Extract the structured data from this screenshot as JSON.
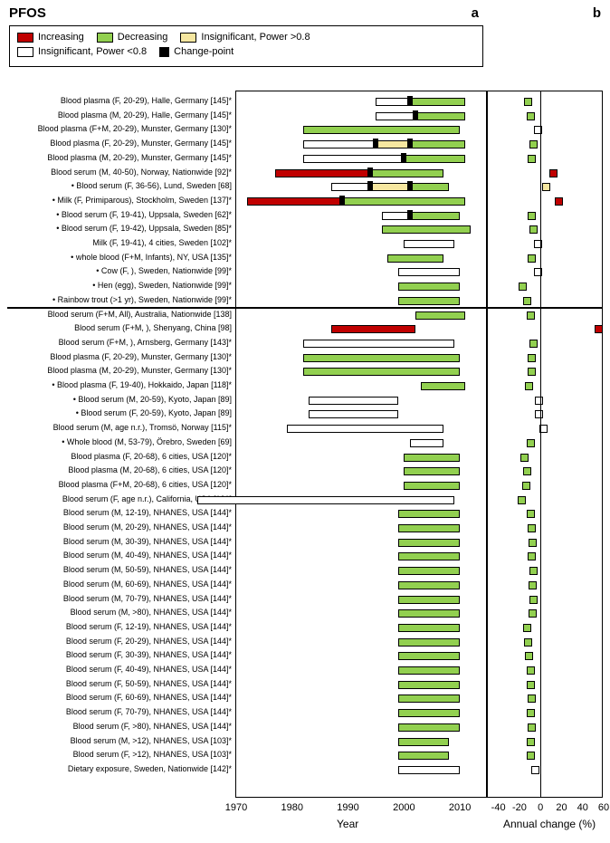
{
  "title": "PFOS",
  "panel_a": "a",
  "panel_b": "b",
  "colors": {
    "increasing": "#c00000",
    "decreasing": "#92d050",
    "insig_high": "#f6e7a0",
    "insig_low": "#ffffff",
    "changepoint": "#000000"
  },
  "legend": [
    {
      "label": "Increasing",
      "color": "#c00000"
    },
    {
      "label": "Decreasing",
      "color": "#92d050"
    },
    {
      "label": "Insignificant, Power >0.8",
      "color": "#f6e7a0"
    },
    {
      "label": "Insignificant, Power <0.8",
      "color": "#ffffff"
    },
    {
      "label": "Change-point",
      "color": "#000000"
    }
  ],
  "axis_a": {
    "label": "Year",
    "min": 1970,
    "max": 2015,
    "ticks": [
      1970,
      1980,
      1990,
      2000,
      2010
    ]
  },
  "axis_b": {
    "label": "Annual change (%)",
    "min": -50,
    "max": 60,
    "ticks": [
      -40,
      -20,
      0,
      20,
      40,
      60
    ]
  },
  "layout": {
    "row_height": 15.7,
    "top_pad": 6,
    "divider_after_row": 14
  },
  "rows": [
    {
      "label": "Blood plasma (F, 20-29), Halle, Germany [145]*",
      "segs": [
        {
          "from": 1995,
          "to": 2001,
          "c": "insig_low"
        },
        {
          "from": 2001,
          "to": 2011,
          "c": "decreasing"
        }
      ],
      "cp": [
        2001
      ],
      "pct": {
        "v": -12,
        "c": "decreasing"
      }
    },
    {
      "label": "Blood plasma (M, 20-29), Halle, Germany [145]*",
      "segs": [
        {
          "from": 1995,
          "to": 2002,
          "c": "insig_low"
        },
        {
          "from": 2002,
          "to": 2011,
          "c": "decreasing"
        }
      ],
      "cp": [
        2002
      ],
      "pct": {
        "v": -10,
        "c": "decreasing"
      }
    },
    {
      "label": "Blood plasma (F+M, 20-29), Munster, Germany [130]*",
      "segs": [
        {
          "from": 1982,
          "to": 2010,
          "c": "decreasing"
        }
      ],
      "cp": [],
      "pct": {
        "v": -3,
        "c": "insig_low"
      }
    },
    {
      "label": "Blood plasma (F, 20-29), Munster, Germany [145]*",
      "segs": [
        {
          "from": 1982,
          "to": 1995,
          "c": "insig_low"
        },
        {
          "from": 1995,
          "to": 2001,
          "c": "insig_high"
        },
        {
          "from": 2001,
          "to": 2011,
          "c": "decreasing"
        }
      ],
      "cp": [
        1995,
        2001
      ],
      "pct": {
        "v": -7,
        "c": "decreasing"
      }
    },
    {
      "label": "Blood plasma (M, 20-29), Munster, Germany [145]*",
      "segs": [
        {
          "from": 1982,
          "to": 2000,
          "c": "insig_low"
        },
        {
          "from": 2000,
          "to": 2011,
          "c": "decreasing"
        }
      ],
      "cp": [
        2000
      ],
      "pct": {
        "v": -9,
        "c": "decreasing"
      }
    },
    {
      "label": "Blood serum (M, 40-50), Norway, Nationwide [92]*",
      "segs": [
        {
          "from": 1977,
          "to": 1994,
          "c": "increasing"
        },
        {
          "from": 1994,
          "to": 2007,
          "c": "decreasing"
        }
      ],
      "cp": [
        1994
      ],
      "pct": {
        "v": 12,
        "c": "increasing"
      }
    },
    {
      "label": "• Blood serum (F, 36-56), Lund, Sweden [68]",
      "segs": [
        {
          "from": 1987,
          "to": 1994,
          "c": "insig_low"
        },
        {
          "from": 1994,
          "to": 2001,
          "c": "insig_high"
        },
        {
          "from": 2001,
          "to": 2008,
          "c": "decreasing"
        }
      ],
      "cp": [
        1994,
        2001
      ],
      "pct": {
        "v": 5,
        "c": "insig_high"
      }
    },
    {
      "label": "• Milk (F, Primiparous), Stockholm, Sweden [137]*",
      "segs": [
        {
          "from": 1972,
          "to": 1989,
          "c": "increasing"
        },
        {
          "from": 1989,
          "to": 2011,
          "c": "decreasing"
        }
      ],
      "cp": [
        1989
      ],
      "pct": {
        "v": 17,
        "c": "increasing"
      }
    },
    {
      "label": "• Blood serum (F, 19-41), Uppsala, Sweden [62]*",
      "segs": [
        {
          "from": 1996,
          "to": 2001,
          "c": "insig_low"
        },
        {
          "from": 2001,
          "to": 2010,
          "c": "decreasing"
        }
      ],
      "cp": [
        2001
      ],
      "pct": {
        "v": -9,
        "c": "decreasing"
      }
    },
    {
      "label": "• Blood serum (F, 19-42), Uppsala, Sweden [85]*",
      "segs": [
        {
          "from": 1996,
          "to": 2012,
          "c": "decreasing"
        }
      ],
      "cp": [],
      "pct": {
        "v": -7,
        "c": "decreasing"
      }
    },
    {
      "label": "Milk (F, 19-41), 4 cities, Sweden [102]*",
      "segs": [
        {
          "from": 2000,
          "to": 2009,
          "c": "insig_low"
        }
      ],
      "cp": [],
      "pct": {
        "v": -3,
        "c": "insig_low"
      }
    },
    {
      "label": "• whole blood (F+M, Infants), NY, USA [135]*",
      "segs": [
        {
          "from": 1997,
          "to": 2007,
          "c": "decreasing"
        }
      ],
      "cp": [],
      "pct": {
        "v": -9,
        "c": "decreasing"
      }
    },
    {
      "label": "• Cow (F, ), Sweden, Nationwide [99]*",
      "segs": [
        {
          "from": 1999,
          "to": 2010,
          "c": "insig_low"
        }
      ],
      "cp": [],
      "pct": {
        "v": -3,
        "c": "insig_low"
      }
    },
    {
      "label": "• Hen (egg), Sweden, Nationwide [99]*",
      "segs": [
        {
          "from": 1999,
          "to": 2010,
          "c": "decreasing"
        }
      ],
      "cp": [],
      "pct": {
        "v": -17,
        "c": "decreasing"
      }
    },
    {
      "label": "• Rainbow trout (>1 yr), Sweden, Nationwide [99]*",
      "segs": [
        {
          "from": 1999,
          "to": 2010,
          "c": "decreasing"
        }
      ],
      "cp": [],
      "pct": {
        "v": -13,
        "c": "decreasing"
      }
    },
    {
      "label": "Blood serum (F+M, All), Australia, Nationwide [138]",
      "segs": [
        {
          "from": 2002,
          "to": 2011,
          "c": "decreasing"
        }
      ],
      "cp": [],
      "pct": {
        "v": -10,
        "c": "decreasing"
      }
    },
    {
      "label": "Blood serum (F+M, ), Shenyang, China [98]",
      "segs": [
        {
          "from": 1987,
          "to": 2002,
          "c": "increasing"
        }
      ],
      "cp": [],
      "pct": {
        "v": 55,
        "c": "increasing"
      }
    },
    {
      "label": "Blood serum (F+M, ), Arnsberg, Germany [143]*",
      "segs": [
        {
          "from": 1982,
          "to": 2009,
          "c": "insig_low"
        }
      ],
      "cp": [],
      "pct": {
        "v": -7,
        "c": "decreasing"
      }
    },
    {
      "label": "Blood plasma (F, 20-29), Munster, Germany [130]*",
      "segs": [
        {
          "from": 1982,
          "to": 2010,
          "c": "decreasing"
        }
      ],
      "cp": [],
      "pct": {
        "v": -9,
        "c": "decreasing"
      }
    },
    {
      "label": "Blood plasma (M, 20-29), Munster, Germany [130]*",
      "segs": [
        {
          "from": 1982,
          "to": 2010,
          "c": "decreasing"
        }
      ],
      "cp": [],
      "pct": {
        "v": -9,
        "c": "decreasing"
      }
    },
    {
      "label": "• Blood plasma (F, 19-40), Hokkaido, Japan [118]*",
      "segs": [
        {
          "from": 2003,
          "to": 2011,
          "c": "decreasing"
        }
      ],
      "cp": [],
      "pct": {
        "v": -11,
        "c": "decreasing"
      }
    },
    {
      "label": "• Blood serum (M, 20-59), Kyoto, Japan [89]",
      "segs": [
        {
          "from": 1983,
          "to": 1999,
          "c": "insig_low"
        }
      ],
      "cp": [],
      "pct": {
        "v": -2,
        "c": "insig_low"
      }
    },
    {
      "label": "• Blood serum (F, 20-59), Kyoto, Japan [89]",
      "segs": [
        {
          "from": 1983,
          "to": 1999,
          "c": "insig_low"
        }
      ],
      "cp": [],
      "pct": {
        "v": -2,
        "c": "insig_low"
      }
    },
    {
      "label": "Blood serum (M, age n.r.), Tromsö, Norway [115]*",
      "segs": [
        {
          "from": 1979,
          "to": 2007,
          "c": "insig_low"
        }
      ],
      "cp": [],
      "pct": {
        "v": 2,
        "c": "insig_low"
      }
    },
    {
      "label": "• Whole blood (M, 53-79), Örebro, Sweden [69]",
      "segs": [
        {
          "from": 2001,
          "to": 2007,
          "c": "insig_low"
        }
      ],
      "cp": [],
      "pct": {
        "v": -10,
        "c": "decreasing"
      }
    },
    {
      "label": "Blood plasma (F, 20-68), 6 cities, USA [120]*",
      "segs": [
        {
          "from": 2000,
          "to": 2010,
          "c": "decreasing"
        }
      ],
      "cp": [],
      "pct": {
        "v": -16,
        "c": "decreasing"
      }
    },
    {
      "label": "Blood plasma (M, 20-68), 6 cities, USA [120]*",
      "segs": [
        {
          "from": 2000,
          "to": 2010,
          "c": "decreasing"
        }
      ],
      "cp": [],
      "pct": {
        "v": -13,
        "c": "decreasing"
      }
    },
    {
      "label": "Blood plasma (F+M, 20-68), 6 cities, USA [120]*",
      "segs": [
        {
          "from": 2000,
          "to": 2010,
          "c": "decreasing"
        }
      ],
      "cp": [],
      "pct": {
        "v": -14,
        "c": "decreasing"
      }
    },
    {
      "label": "Blood serum (F, age n.r.), California, USA [121]",
      "segs": [
        {
          "from": 1963,
          "to": 2009,
          "c": "insig_low"
        }
      ],
      "cp": [],
      "pct": {
        "v": -18,
        "c": "decreasing"
      }
    },
    {
      "label": "Blood serum (M, 12-19), NHANES, USA [144]*",
      "segs": [
        {
          "from": 1999,
          "to": 2010,
          "c": "decreasing"
        }
      ],
      "cp": [],
      "pct": {
        "v": -10,
        "c": "decreasing"
      }
    },
    {
      "label": "Blood serum (M, 20-29), NHANES, USA [144]*",
      "segs": [
        {
          "from": 1999,
          "to": 2010,
          "c": "decreasing"
        }
      ],
      "cp": [],
      "pct": {
        "v": -9,
        "c": "decreasing"
      }
    },
    {
      "label": "Blood serum (M, 30-39), NHANES, USA [144]*",
      "segs": [
        {
          "from": 1999,
          "to": 2010,
          "c": "decreasing"
        }
      ],
      "cp": [],
      "pct": {
        "v": -8,
        "c": "decreasing"
      }
    },
    {
      "label": "Blood serum (M, 40-49), NHANES, USA [144]*",
      "segs": [
        {
          "from": 1999,
          "to": 2010,
          "c": "decreasing"
        }
      ],
      "cp": [],
      "pct": {
        "v": -9,
        "c": "decreasing"
      }
    },
    {
      "label": "Blood serum (M, 50-59), NHANES, USA [144]*",
      "segs": [
        {
          "from": 1999,
          "to": 2010,
          "c": "decreasing"
        }
      ],
      "cp": [],
      "pct": {
        "v": -7,
        "c": "decreasing"
      }
    },
    {
      "label": "Blood serum (M, 60-69), NHANES, USA [144]*",
      "segs": [
        {
          "from": 1999,
          "to": 2010,
          "c": "decreasing"
        }
      ],
      "cp": [],
      "pct": {
        "v": -8,
        "c": "decreasing"
      }
    },
    {
      "label": "Blood serum (M, 70-79), NHANES, USA [144]*",
      "segs": [
        {
          "from": 1999,
          "to": 2010,
          "c": "decreasing"
        }
      ],
      "cp": [],
      "pct": {
        "v": -7,
        "c": "decreasing"
      }
    },
    {
      "label": "Blood serum (M, >80), NHANES, USA [144]*",
      "segs": [
        {
          "from": 1999,
          "to": 2010,
          "c": "decreasing"
        }
      ],
      "cp": [],
      "pct": {
        "v": -8,
        "c": "decreasing"
      }
    },
    {
      "label": "Blood serum (F, 12-19), NHANES, USA [144]*",
      "segs": [
        {
          "from": 1999,
          "to": 2010,
          "c": "decreasing"
        }
      ],
      "cp": [],
      "pct": {
        "v": -13,
        "c": "decreasing"
      }
    },
    {
      "label": "Blood serum (F, 20-29), NHANES, USA [144]*",
      "segs": [
        {
          "from": 1999,
          "to": 2010,
          "c": "decreasing"
        }
      ],
      "cp": [],
      "pct": {
        "v": -12,
        "c": "decreasing"
      }
    },
    {
      "label": "Blood serum (F, 30-39), NHANES, USA [144]*",
      "segs": [
        {
          "from": 1999,
          "to": 2010,
          "c": "decreasing"
        }
      ],
      "cp": [],
      "pct": {
        "v": -11,
        "c": "decreasing"
      }
    },
    {
      "label": "Blood serum (F, 40-49), NHANES, USA [144]*",
      "segs": [
        {
          "from": 1999,
          "to": 2010,
          "c": "decreasing"
        }
      ],
      "cp": [],
      "pct": {
        "v": -10,
        "c": "decreasing"
      }
    },
    {
      "label": "Blood serum (F, 50-59), NHANES, USA [144]*",
      "segs": [
        {
          "from": 1999,
          "to": 2010,
          "c": "decreasing"
        }
      ],
      "cp": [],
      "pct": {
        "v": -10,
        "c": "decreasing"
      }
    },
    {
      "label": "Blood serum (F, 60-69), NHANES, USA [144]*",
      "segs": [
        {
          "from": 1999,
          "to": 2010,
          "c": "decreasing"
        }
      ],
      "cp": [],
      "pct": {
        "v": -9,
        "c": "decreasing"
      }
    },
    {
      "label": "Blood serum (F, 70-79), NHANES, USA [144]*",
      "segs": [
        {
          "from": 1999,
          "to": 2010,
          "c": "decreasing"
        }
      ],
      "cp": [],
      "pct": {
        "v": -10,
        "c": "decreasing"
      }
    },
    {
      "label": "Blood serum (F, >80), NHANES, USA [144]*",
      "segs": [
        {
          "from": 1999,
          "to": 2010,
          "c": "decreasing"
        }
      ],
      "cp": [],
      "pct": {
        "v": -9,
        "c": "decreasing"
      }
    },
    {
      "label": "Blood serum (M, >12), NHANES, USA [103]*",
      "segs": [
        {
          "from": 1999,
          "to": 2008,
          "c": "decreasing"
        }
      ],
      "cp": [],
      "pct": {
        "v": -10,
        "c": "decreasing"
      }
    },
    {
      "label": "Blood serum (F, >12), NHANES, USA [103]*",
      "segs": [
        {
          "from": 1999,
          "to": 2008,
          "c": "decreasing"
        }
      ],
      "cp": [],
      "pct": {
        "v": -10,
        "c": "decreasing"
      }
    },
    {
      "label": "Dietary exposure, Sweden, Nationwide [142]*",
      "segs": [
        {
          "from": 1999,
          "to": 2010,
          "c": "insig_low"
        }
      ],
      "cp": [],
      "pct": {
        "v": -5,
        "c": "insig_low"
      }
    }
  ]
}
